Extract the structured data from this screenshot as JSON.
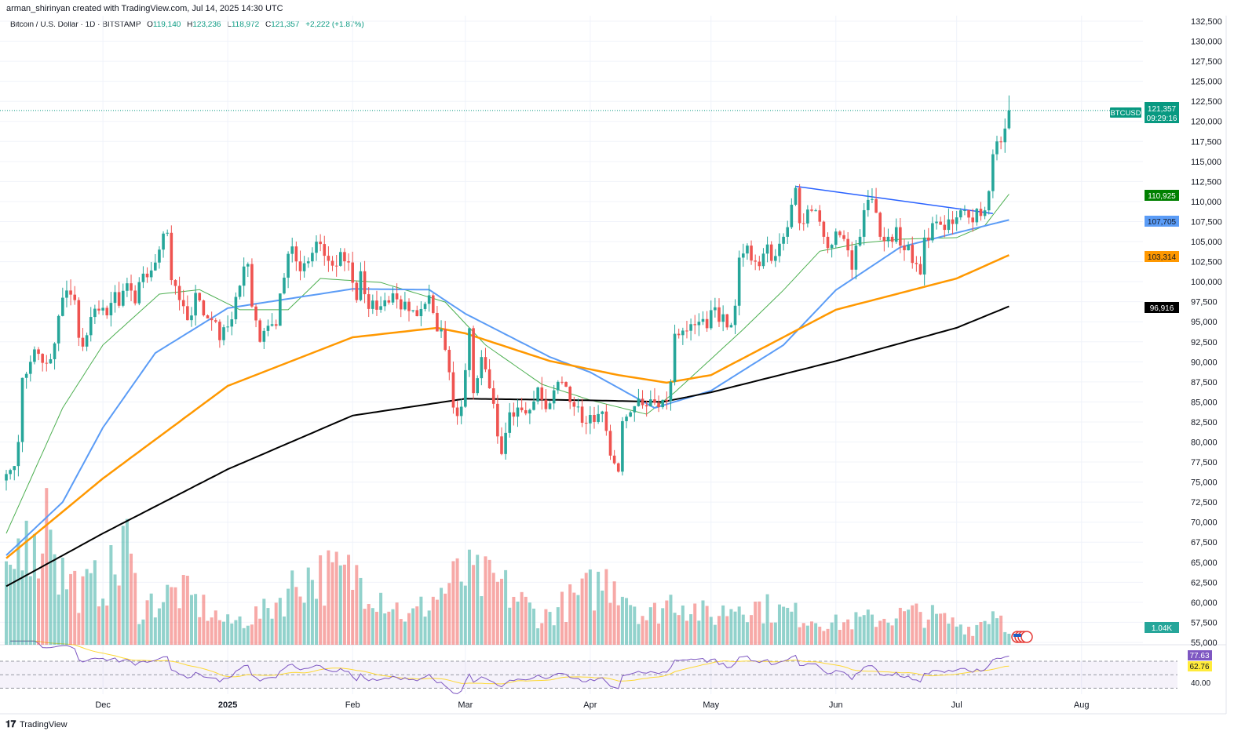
{
  "header": {
    "attribution": "arman_shirinyan created with TradingView.com, Jul 14, 2025 14:30 UTC",
    "symbol_title": "Bitcoin / U.S. Dollar · 1D · BITSTAMP",
    "o_label": "O",
    "o_value": "119,140",
    "h_label": "H",
    "h_value": "123,236",
    "l_label": "L",
    "l_value": "118,972",
    "c_label": "C",
    "c_value": "121,357",
    "change": "+2,222 (+1.87%)"
  },
  "price_axis": {
    "ticks": [
      "132,500",
      "130,000",
      "127,500",
      "125,000",
      "122,500",
      "120,000",
      "117,500",
      "115,000",
      "112,500",
      "110,000",
      "107,500",
      "105,000",
      "102,500",
      "100,000",
      "97,500",
      "95,000",
      "92,500",
      "90,000",
      "87,500",
      "85,000",
      "82,500",
      "80,000",
      "77,500",
      "75,000",
      "72,500",
      "70,000",
      "67,500",
      "65,000",
      "62,500",
      "60,000",
      "57,500",
      "55,000"
    ],
    "last_price_tag": "BTCUSD",
    "last_price": "121,357",
    "countdown": "09:29:16",
    "ma20_label": "110,925",
    "ma50_label": "107,705",
    "ma100_label": "103,314",
    "ma200_label": "96,916",
    "volume_label": "1.04K",
    "rsi_label": "77.63",
    "rsi_ma_label": "62.76",
    "rsi_tick": "40.00"
  },
  "time_axis": {
    "ticks": [
      [
        "Dec",
        "2024-12-01"
      ],
      [
        "2025",
        "2025-01-01"
      ],
      [
        "Feb",
        "2025-02-01"
      ],
      [
        "Mar",
        "2025-03-01"
      ],
      [
        "Apr",
        "2025-04-01"
      ],
      [
        "May",
        "2025-05-01"
      ],
      [
        "Jun",
        "2025-06-01"
      ],
      [
        "Jul",
        "2025-07-01"
      ],
      [
        "Aug",
        "2025-08-01"
      ]
    ]
  },
  "branding": {
    "logo_text": "TradingView"
  },
  "colors": {
    "up": "#26a69a",
    "down": "#ef5350",
    "ma20": "#4caf50",
    "ma50": "#5b9cf6",
    "ma100": "#ff9800",
    "ma200": "#000000",
    "trendline": "#2962ff",
    "rsi": "#7e57c2",
    "rsi_ma": "#fdd835",
    "last_price": "#089981"
  },
  "chart_data": {
    "type": "candlestick",
    "title": "Bitcoin / U.S. Dollar · 1D · BITSTAMP",
    "ylim": [
      55000,
      132500
    ],
    "xlim": [
      "2024-11-07",
      "2025-08-15"
    ],
    "grid": true,
    "last_candle": {
      "date": "2025-07-14",
      "open": 119140,
      "high": 123236,
      "low": 118972,
      "close": 121357
    },
    "closes": [
      [
        "2024-11-07",
        76000
      ],
      [
        "2024-11-08",
        76500
      ],
      [
        "2024-11-10",
        80000
      ],
      [
        "2024-11-11",
        88000
      ],
      [
        "2024-11-12",
        88500
      ],
      [
        "2024-11-13",
        90000
      ],
      [
        "2024-11-15",
        91000
      ],
      [
        "2024-11-17",
        89800
      ],
      [
        "2024-11-19",
        92300
      ],
      [
        "2024-11-21",
        98000
      ],
      [
        "2024-11-22",
        98900
      ],
      [
        "2024-11-24",
        97700
      ],
      [
        "2024-11-25",
        93000
      ],
      [
        "2024-11-26",
        91900
      ],
      [
        "2024-11-28",
        95600
      ],
      [
        "2024-11-30",
        96400
      ],
      [
        "2024-12-02",
        95800
      ],
      [
        "2024-12-04",
        98700
      ],
      [
        "2024-12-05",
        97000
      ],
      [
        "2024-12-07",
        99800
      ],
      [
        "2024-12-09",
        97300
      ],
      [
        "2024-12-11",
        101000
      ],
      [
        "2024-12-13",
        101400
      ],
      [
        "2024-12-15",
        104000
      ],
      [
        "2024-12-16",
        106000
      ],
      [
        "2024-12-17",
        106100
      ],
      [
        "2024-12-18",
        100200
      ],
      [
        "2024-12-20",
        97700
      ],
      [
        "2024-12-22",
        95200
      ],
      [
        "2024-12-24",
        98600
      ],
      [
        "2024-12-26",
        95800
      ],
      [
        "2024-12-28",
        95200
      ],
      [
        "2024-12-30",
        92700
      ],
      [
        "2025-01-01",
        94400
      ],
      [
        "2025-01-03",
        98100
      ],
      [
        "2025-01-06",
        102200
      ],
      [
        "2025-01-07",
        96900
      ],
      [
        "2025-01-09",
        92500
      ],
      [
        "2025-01-11",
        94500
      ],
      [
        "2025-01-13",
        94500
      ],
      [
        "2025-01-15",
        100500
      ],
      [
        "2025-01-17",
        104400
      ],
      [
        "2025-01-19",
        101300
      ],
      [
        "2025-01-20",
        102300
      ],
      [
        "2025-01-22",
        103600
      ],
      [
        "2025-01-24",
        104700
      ],
      [
        "2025-01-26",
        102600
      ],
      [
        "2025-01-27",
        102000
      ],
      [
        "2025-01-29",
        103700
      ],
      [
        "2025-01-31",
        102400
      ],
      [
        "2025-02-02",
        97700
      ],
      [
        "2025-02-03",
        101300
      ],
      [
        "2025-02-05",
        96600
      ],
      [
        "2025-02-07",
        96500
      ],
      [
        "2025-02-10",
        97400
      ],
      [
        "2025-02-12",
        97800
      ],
      [
        "2025-02-14",
        97500
      ],
      [
        "2025-02-17",
        95700
      ],
      [
        "2025-02-20",
        98300
      ],
      [
        "2025-02-21",
        96100
      ],
      [
        "2025-02-24",
        91500
      ],
      [
        "2025-02-25",
        88700
      ],
      [
        "2025-02-26",
        84300
      ],
      [
        "2025-02-28",
        84400
      ],
      [
        "2025-03-02",
        94200
      ],
      [
        "2025-03-03",
        86100
      ],
      [
        "2025-03-05",
        90600
      ],
      [
        "2025-03-07",
        86700
      ],
      [
        "2025-03-09",
        80700
      ],
      [
        "2025-03-10",
        78500
      ],
      [
        "2025-03-12",
        83700
      ],
      [
        "2025-03-14",
        84300
      ],
      [
        "2025-03-17",
        84000
      ],
      [
        "2025-03-19",
        86800
      ],
      [
        "2025-03-21",
        84100
      ],
      [
        "2025-03-24",
        87500
      ],
      [
        "2025-03-26",
        86900
      ],
      [
        "2025-03-28",
        84400
      ],
      [
        "2025-03-30",
        82400
      ],
      [
        "2025-04-02",
        82500
      ],
      [
        "2025-04-04",
        83800
      ],
      [
        "2025-04-06",
        78300
      ],
      [
        "2025-04-08",
        76300
      ],
      [
        "2025-04-09",
        82600
      ],
      [
        "2025-04-11",
        83700
      ],
      [
        "2025-04-14",
        84600
      ],
      [
        "2025-04-17",
        84900
      ],
      [
        "2025-04-20",
        85100
      ],
      [
        "2025-04-21",
        87500
      ],
      [
        "2025-04-22",
        93500
      ],
      [
        "2025-04-24",
        93900
      ],
      [
        "2025-04-26",
        94700
      ],
      [
        "2025-04-28",
        95000
      ],
      [
        "2025-04-30",
        94200
      ],
      [
        "2025-05-02",
        96800
      ],
      [
        "2025-05-05",
        94300
      ],
      [
        "2025-05-07",
        97000
      ],
      [
        "2025-05-08",
        103000
      ],
      [
        "2025-05-10",
        104500
      ],
      [
        "2025-05-12",
        102500
      ],
      [
        "2025-05-14",
        103500
      ],
      [
        "2025-05-17",
        103200
      ],
      [
        "2025-05-19",
        105600
      ],
      [
        "2025-05-20",
        106800
      ],
      [
        "2025-05-21",
        109600
      ],
      [
        "2025-05-22",
        111700
      ],
      [
        "2025-05-23",
        107300
      ],
      [
        "2025-05-25",
        109000
      ],
      [
        "2025-05-27",
        108900
      ],
      [
        "2025-05-29",
        105600
      ],
      [
        "2025-05-31",
        104600
      ],
      [
        "2025-06-02",
        105800
      ],
      [
        "2025-06-05",
        101500
      ],
      [
        "2025-06-07",
        105600
      ],
      [
        "2025-06-09",
        110200
      ],
      [
        "2025-06-10",
        110300
      ],
      [
        "2025-06-12",
        105600
      ],
      [
        "2025-06-14",
        105600
      ],
      [
        "2025-06-16",
        106800
      ],
      [
        "2025-06-17",
        104500
      ],
      [
        "2025-06-19",
        104600
      ],
      [
        "2025-06-21",
        102200
      ],
      [
        "2025-06-22",
        100900
      ],
      [
        "2025-06-23",
        105500
      ],
      [
        "2025-06-25",
        107300
      ],
      [
        "2025-06-27",
        107100
      ],
      [
        "2025-06-30",
        107200
      ],
      [
        "2025-07-02",
        108900
      ],
      [
        "2025-07-04",
        108000
      ],
      [
        "2025-07-07",
        108200
      ],
      [
        "2025-07-08",
        108900
      ],
      [
        "2025-07-09",
        111300
      ],
      [
        "2025-07-10",
        115900
      ],
      [
        "2025-07-11",
        117500
      ],
      [
        "2025-07-12",
        117400
      ],
      [
        "2025-07-13",
        119100
      ]
    ],
    "moving_averages": [
      {
        "name": "MA 20",
        "color": "#4caf50",
        "points": [
          [
            "2024-11-07",
            68600
          ],
          [
            "2024-11-21",
            84250
          ],
          [
            "2024-12-01",
            92100
          ],
          [
            "2024-12-15",
            98450
          ],
          [
            "2024-12-25",
            99000
          ],
          [
            "2025-01-04",
            96500
          ],
          [
            "2025-01-16",
            96500
          ],
          [
            "2025-01-24",
            100400
          ],
          [
            "2025-02-08",
            99900
          ],
          [
            "2025-02-24",
            97460
          ],
          [
            "2025-03-06",
            92100
          ],
          [
            "2025-03-20",
            87200
          ],
          [
            "2025-04-01",
            85230
          ],
          [
            "2025-04-15",
            83470
          ],
          [
            "2025-04-22",
            86200
          ],
          [
            "2025-05-09",
            94050
          ],
          [
            "2025-05-19",
            98950
          ],
          [
            "2025-05-28",
            103800
          ],
          [
            "2025-06-07",
            104800
          ],
          [
            "2025-06-17",
            105300
          ],
          [
            "2025-07-01",
            105500
          ],
          [
            "2025-07-08",
            107000
          ],
          [
            "2025-07-14",
            110925
          ]
        ]
      },
      {
        "name": "MA 50",
        "color": "#5b9cf6",
        "points": [
          [
            "2024-11-07",
            65860
          ],
          [
            "2024-11-21",
            72500
          ],
          [
            "2024-12-01",
            81800
          ],
          [
            "2024-12-14",
            91100
          ],
          [
            "2025-01-01",
            96700
          ],
          [
            "2025-01-23",
            98400
          ],
          [
            "2025-02-01",
            99100
          ],
          [
            "2025-02-20",
            99000
          ],
          [
            "2025-03-01",
            96000
          ],
          [
            "2025-03-22",
            90600
          ],
          [
            "2025-04-01",
            88700
          ],
          [
            "2025-04-17",
            84250
          ],
          [
            "2025-05-01",
            86400
          ],
          [
            "2025-05-19",
            92100
          ],
          [
            "2025-06-01",
            98950
          ],
          [
            "2025-06-17",
            104300
          ],
          [
            "2025-07-01",
            106100
          ],
          [
            "2025-07-14",
            107705
          ]
        ]
      },
      {
        "name": "MA 100",
        "color": "#ff9800",
        "points": [
          [
            "2024-11-07",
            65500
          ],
          [
            "2024-12-01",
            75450
          ],
          [
            "2025-01-01",
            87000
          ],
          [
            "2025-02-01",
            93060
          ],
          [
            "2025-02-22",
            94240
          ],
          [
            "2025-03-01",
            93550
          ],
          [
            "2025-03-22",
            90100
          ],
          [
            "2025-04-08",
            88350
          ],
          [
            "2025-04-20",
            87400
          ],
          [
            "2025-05-01",
            88350
          ],
          [
            "2025-06-01",
            96500
          ],
          [
            "2025-07-01",
            100400
          ],
          [
            "2025-07-14",
            103314
          ]
        ]
      },
      {
        "name": "MA 200",
        "color": "#000000",
        "points": [
          [
            "2024-11-07",
            62000
          ],
          [
            "2024-12-01",
            68600
          ],
          [
            "2025-01-01",
            76600
          ],
          [
            "2025-02-01",
            83300
          ],
          [
            "2025-03-01",
            85400
          ],
          [
            "2025-04-01",
            85200
          ],
          [
            "2025-04-19",
            85000
          ],
          [
            "2025-05-01",
            86200
          ],
          [
            "2025-06-01",
            90100
          ],
          [
            "2025-07-01",
            94250
          ],
          [
            "2025-07-14",
            96916
          ]
        ]
      }
    ],
    "trendline": {
      "from": [
        "2025-05-22",
        111900
      ],
      "to": [
        "2025-07-10",
        108500
      ]
    },
    "volume": {
      "unit": "K",
      "last": 1.04,
      "points": [
        [
          "2024-11-07",
          5.5
        ],
        [
          "2024-11-10",
          9
        ],
        [
          "2024-11-12",
          14.5
        ],
        [
          "2024-11-14",
          8
        ],
        [
          "2024-11-18",
          14.5
        ],
        [
          "2024-11-20",
          7
        ],
        [
          "2024-11-26",
          5
        ],
        [
          "2024-12-05",
          7
        ],
        [
          "2024-12-06",
          11
        ],
        [
          "2024-12-10",
          3.5
        ],
        [
          "2024-12-20",
          5
        ],
        [
          "2025-01-01",
          2
        ],
        [
          "2025-01-10",
          3
        ],
        [
          "2025-01-20",
          6.5
        ],
        [
          "2025-02-03",
          6.5
        ],
        [
          "2025-02-15",
          2.5
        ],
        [
          "2025-02-28",
          6.5
        ],
        [
          "2025-03-10",
          5.5
        ],
        [
          "2025-03-20",
          2.5
        ],
        [
          "2025-04-07",
          6.5
        ],
        [
          "2025-04-15",
          2.5
        ],
        [
          "2025-04-22",
          4.5
        ],
        [
          "2025-05-01",
          2.5
        ],
        [
          "2025-05-08",
          4
        ],
        [
          "2025-05-20",
          3
        ],
        [
          "2025-06-01",
          2
        ],
        [
          "2025-06-22",
          3
        ],
        [
          "2025-07-05",
          1.5
        ],
        [
          "2025-07-11",
          3.5
        ],
        [
          "2025-07-14",
          1.04
        ]
      ]
    },
    "rsi": {
      "period": 14,
      "ma_period": 14,
      "levels": [
        70,
        50,
        30
      ],
      "last": 77.63,
      "ma_last": 62.76
    }
  }
}
